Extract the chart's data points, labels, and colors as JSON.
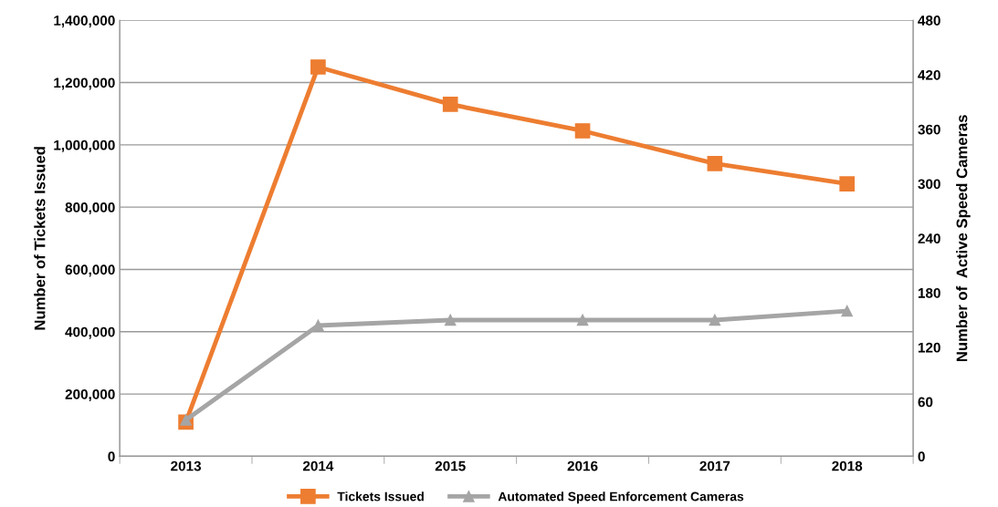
{
  "chart_data": {
    "type": "line",
    "categories": [
      "2013",
      "2014",
      "2015",
      "2016",
      "2017",
      "2018"
    ],
    "ylabel": "Number of Tickets Issued",
    "y2label": "Number of  Active Speed Cameras",
    "series": [
      {
        "name": "Tickets Issued",
        "color": "#ed7d31",
        "marker": "square",
        "values": [
          110000,
          1250000,
          1130000,
          1045000,
          940000,
          875000
        ]
      },
      {
        "name": "Automated Speed Enforcement Cameras",
        "color": "#a5a5a5",
        "marker": "triangle",
        "axis": "y2",
        "values": [
          40,
          144,
          150,
          150,
          150,
          160
        ]
      }
    ],
    "ylim": [
      0,
      1400000
    ],
    "yticks": [
      {
        "value": 0,
        "label": "0"
      },
      {
        "value": 200000,
        "label": "200,000"
      },
      {
        "value": 400000,
        "label": "400,000"
      },
      {
        "value": 600000,
        "label": "600,000"
      },
      {
        "value": 800000,
        "label": "800,000"
      },
      {
        "value": 1000000,
        "label": "1,000,000"
      },
      {
        "value": 1200000,
        "label": "1,200,000"
      },
      {
        "value": 1400000,
        "label": "1,400,000"
      }
    ],
    "y2lim": [
      0,
      480
    ],
    "y2ticks": [
      0,
      60,
      120,
      180,
      240,
      300,
      360,
      420,
      480
    ],
    "grid": "y",
    "legend": "bottom"
  }
}
